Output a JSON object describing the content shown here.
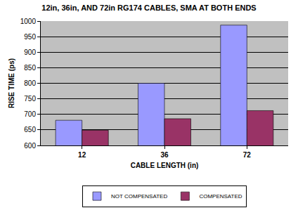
{
  "chart_data": {
    "type": "bar",
    "title": "12in, 36in, AND 72in RG174 CABLES, SMA AT BOTH ENDS",
    "x_label": "CABLE LENGTH (in)",
    "y_label": "RISE TIME (ps)",
    "categories": [
      "12",
      "36",
      "72"
    ],
    "series": [
      {
        "name": "NOT COMPENSATED",
        "color": "#9999ff",
        "values": [
          681,
          800,
          987
        ]
      },
      {
        "name": "COMPENSATED",
        "color": "#993366",
        "values": [
          649,
          686,
          712
        ]
      }
    ],
    "ylim": [
      600,
      1000
    ],
    "yticks": [
      600,
      650,
      700,
      750,
      800,
      850,
      900,
      950,
      1000
    ],
    "grid": true,
    "legend": "bottom"
  }
}
